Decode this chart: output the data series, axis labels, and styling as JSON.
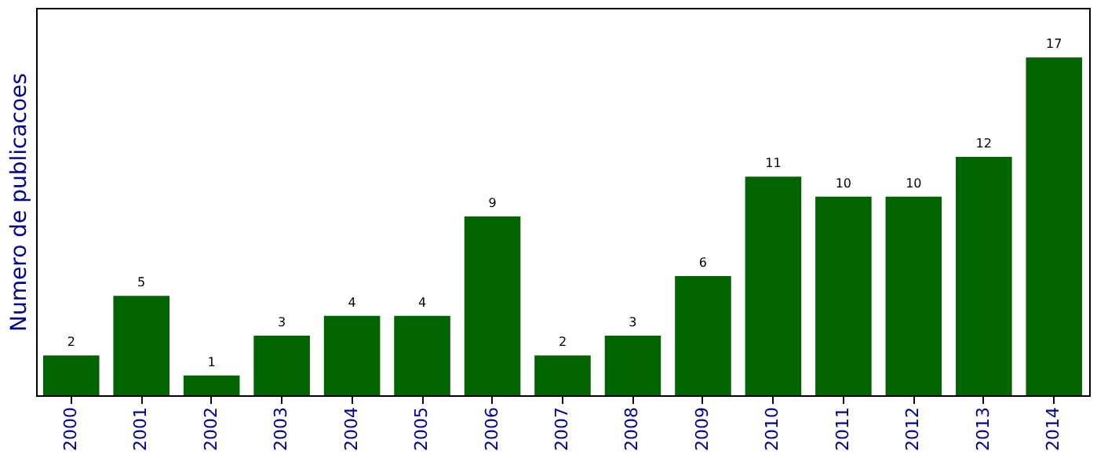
{
  "chart_data": {
    "type": "bar",
    "ylabel": "Numero de publicacoes",
    "categories": [
      "2000",
      "2001",
      "2002",
      "2003",
      "2004",
      "2005",
      "2006",
      "2007",
      "2008",
      "2009",
      "2010",
      "2011",
      "2012",
      "2013",
      "2014"
    ],
    "values": [
      2,
      5,
      1,
      3,
      4,
      4,
      9,
      2,
      3,
      6,
      11,
      10,
      10,
      12,
      17
    ],
    "color": "#006400",
    "ylim": [
      0,
      19.5
    ],
    "data_labels": true,
    "grid": false,
    "tick_labels": "x"
  }
}
